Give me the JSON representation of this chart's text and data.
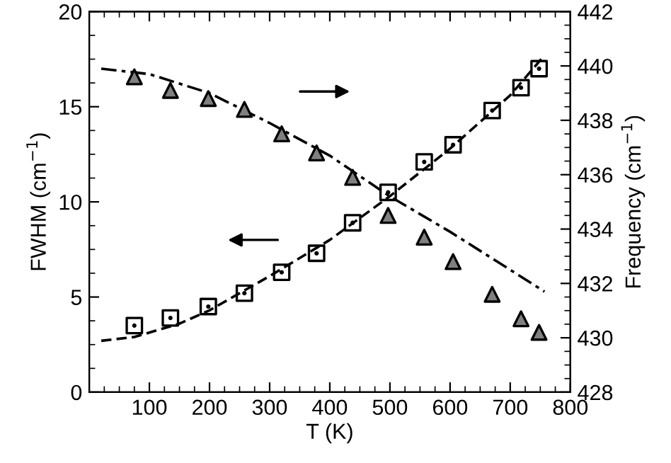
{
  "chart_data": {
    "type": "scatter",
    "xlabel": "T (K)",
    "ylabel": "FWHM (cm$^{−1}$)",
    "y2label": "Frequency (cm$^{−1}$)",
    "xlim": [
      0,
      800
    ],
    "xticks": [
      100,
      200,
      300,
      400,
      500,
      600,
      700,
      800
    ],
    "ylim": [
      0,
      20
    ],
    "yticks": [
      0,
      5,
      10,
      15,
      20
    ],
    "y2lim": [
      428,
      442
    ],
    "y2ticks": [
      428,
      430,
      432,
      434,
      436,
      438,
      440,
      442
    ],
    "grid": false,
    "legend": false,
    "series": [
      {
        "marker": "square",
        "color": "#000000",
        "x": [
          75,
          135,
          198,
          258,
          320,
          378,
          438,
          497,
          557,
          605,
          670,
          718,
          748
        ],
        "values": [
          3.5,
          3.9,
          4.5,
          5.2,
          6.3,
          7.3,
          8.9,
          10.5,
          12.1,
          13.0,
          14.8,
          16.0,
          17.0
        ]
      },
      {
        "marker": "triangle",
        "axis": "y2",
        "color": "#808080",
        "x": [
          75,
          135,
          198,
          258,
          320,
          378,
          438,
          497,
          557,
          605,
          670,
          718,
          748
        ],
        "values": [
          439.6,
          439.1,
          438.8,
          438.4,
          437.5,
          436.8,
          435.9,
          434.5,
          433.7,
          432.8,
          431.6,
          430.7,
          430.2
        ]
      },
      {
        "type": "line",
        "line_style": "dashed",
        "color": "#000000",
        "x": [
          20,
          75,
          150,
          200,
          300,
          400,
          500,
          600,
          700,
          757
        ],
        "values": [
          2.7,
          2.9,
          3.6,
          4.3,
          6.1,
          8.0,
          10.3,
          12.8,
          15.6,
          17.7
        ]
      },
      {
        "type": "line",
        "line_style": "dashdot",
        "axis": "y2",
        "color": "#000000",
        "x": [
          20,
          100,
          200,
          300,
          400,
          500,
          600,
          700,
          757
        ],
        "values": [
          439.9,
          439.7,
          439.0,
          437.9,
          436.7,
          435.2,
          433.9,
          432.5,
          431.7
        ]
      }
    ]
  }
}
